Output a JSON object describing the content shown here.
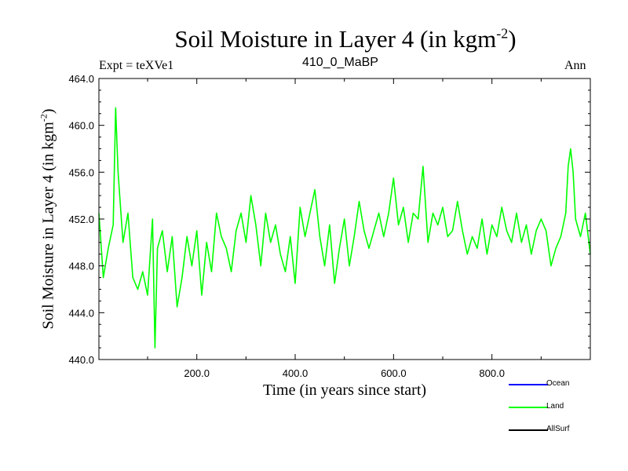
{
  "chart_data": {
    "type": "line",
    "title_main": "Soil Moisture in Layer 4 (in kgm",
    "title_sup": "-2",
    "title_close": ")",
    "expt_label": "Expt = teXVe1",
    "subtitle": "410_0_MaBP",
    "season": "Ann",
    "xlabel": "Time (in years since start)",
    "ylabel_main": "Soil Moisture in Layer 4 (in kgm",
    "ylabel_sup": "-2",
    "ylabel_close": ")",
    "xlim": [
      1,
      1000
    ],
    "ylim": [
      440,
      464
    ],
    "xticks": [
      "200.0",
      "400.0",
      "600.0",
      "800.0"
    ],
    "xtick_values": [
      200,
      400,
      600,
      800
    ],
    "yticks": [
      "440.0",
      "444.0",
      "448.0",
      "452.0",
      "456.0",
      "460.0",
      "464.0"
    ],
    "ytick_values": [
      440,
      444,
      448,
      452,
      456,
      460,
      464
    ],
    "series": [
      {
        "name": "Land",
        "color": "#00ff00",
        "x": [
          1,
          10,
          20,
          30,
          35,
          40,
          50,
          60,
          70,
          80,
          90,
          100,
          110,
          115,
          120,
          130,
          140,
          150,
          160,
          170,
          180,
          190,
          200,
          210,
          220,
          230,
          240,
          250,
          260,
          270,
          280,
          290,
          300,
          310,
          320,
          330,
          340,
          350,
          360,
          370,
          380,
          390,
          400,
          410,
          420,
          430,
          440,
          450,
          460,
          470,
          480,
          490,
          500,
          510,
          520,
          530,
          540,
          550,
          560,
          570,
          580,
          590,
          600,
          610,
          620,
          630,
          640,
          650,
          660,
          670,
          680,
          690,
          700,
          710,
          720,
          730,
          740,
          750,
          760,
          770,
          780,
          790,
          800,
          810,
          820,
          830,
          840,
          850,
          860,
          870,
          880,
          890,
          900,
          910,
          920,
          930,
          940,
          950,
          955,
          960,
          965,
          970,
          980,
          990,
          1000
        ],
        "y": [
          452.5,
          447.0,
          449.5,
          451.5,
          461.5,
          456.0,
          450.0,
          452.5,
          447.0,
          446.0,
          447.5,
          445.5,
          452.0,
          441.0,
          449.5,
          451.0,
          447.5,
          450.5,
          444.5,
          447.0,
          450.5,
          448.0,
          451.0,
          445.5,
          450.0,
          447.5,
          452.5,
          450.5,
          449.5,
          447.5,
          451.0,
          452.5,
          450.0,
          454.0,
          451.5,
          448.0,
          452.5,
          450.0,
          451.5,
          449.0,
          447.5,
          450.5,
          446.5,
          453.0,
          450.5,
          452.5,
          454.5,
          450.5,
          448.0,
          451.5,
          446.5,
          449.5,
          452.0,
          448.0,
          450.5,
          453.5,
          451.0,
          449.5,
          451.0,
          452.5,
          450.5,
          452.5,
          455.5,
          451.5,
          453.0,
          450.0,
          452.5,
          452.0,
          456.5,
          450.0,
          452.5,
          451.5,
          453.0,
          450.5,
          451.0,
          453.5,
          451.0,
          449.0,
          450.5,
          449.5,
          452.0,
          449.0,
          451.5,
          450.5,
          453.0,
          451.0,
          450.0,
          452.5,
          450.0,
          451.5,
          449.0,
          451.0,
          452.0,
          451.0,
          448.0,
          449.5,
          450.5,
          452.5,
          456.5,
          458.0,
          456.0,
          452.0,
          450.5,
          452.5,
          449.0
        ]
      }
    ],
    "legend": [
      {
        "name": "Ocean",
        "color": "#0000ff"
      },
      {
        "name": "Land",
        "color": "#00ff00"
      },
      {
        "name": "AllSurf",
        "color": "#000000"
      }
    ]
  }
}
